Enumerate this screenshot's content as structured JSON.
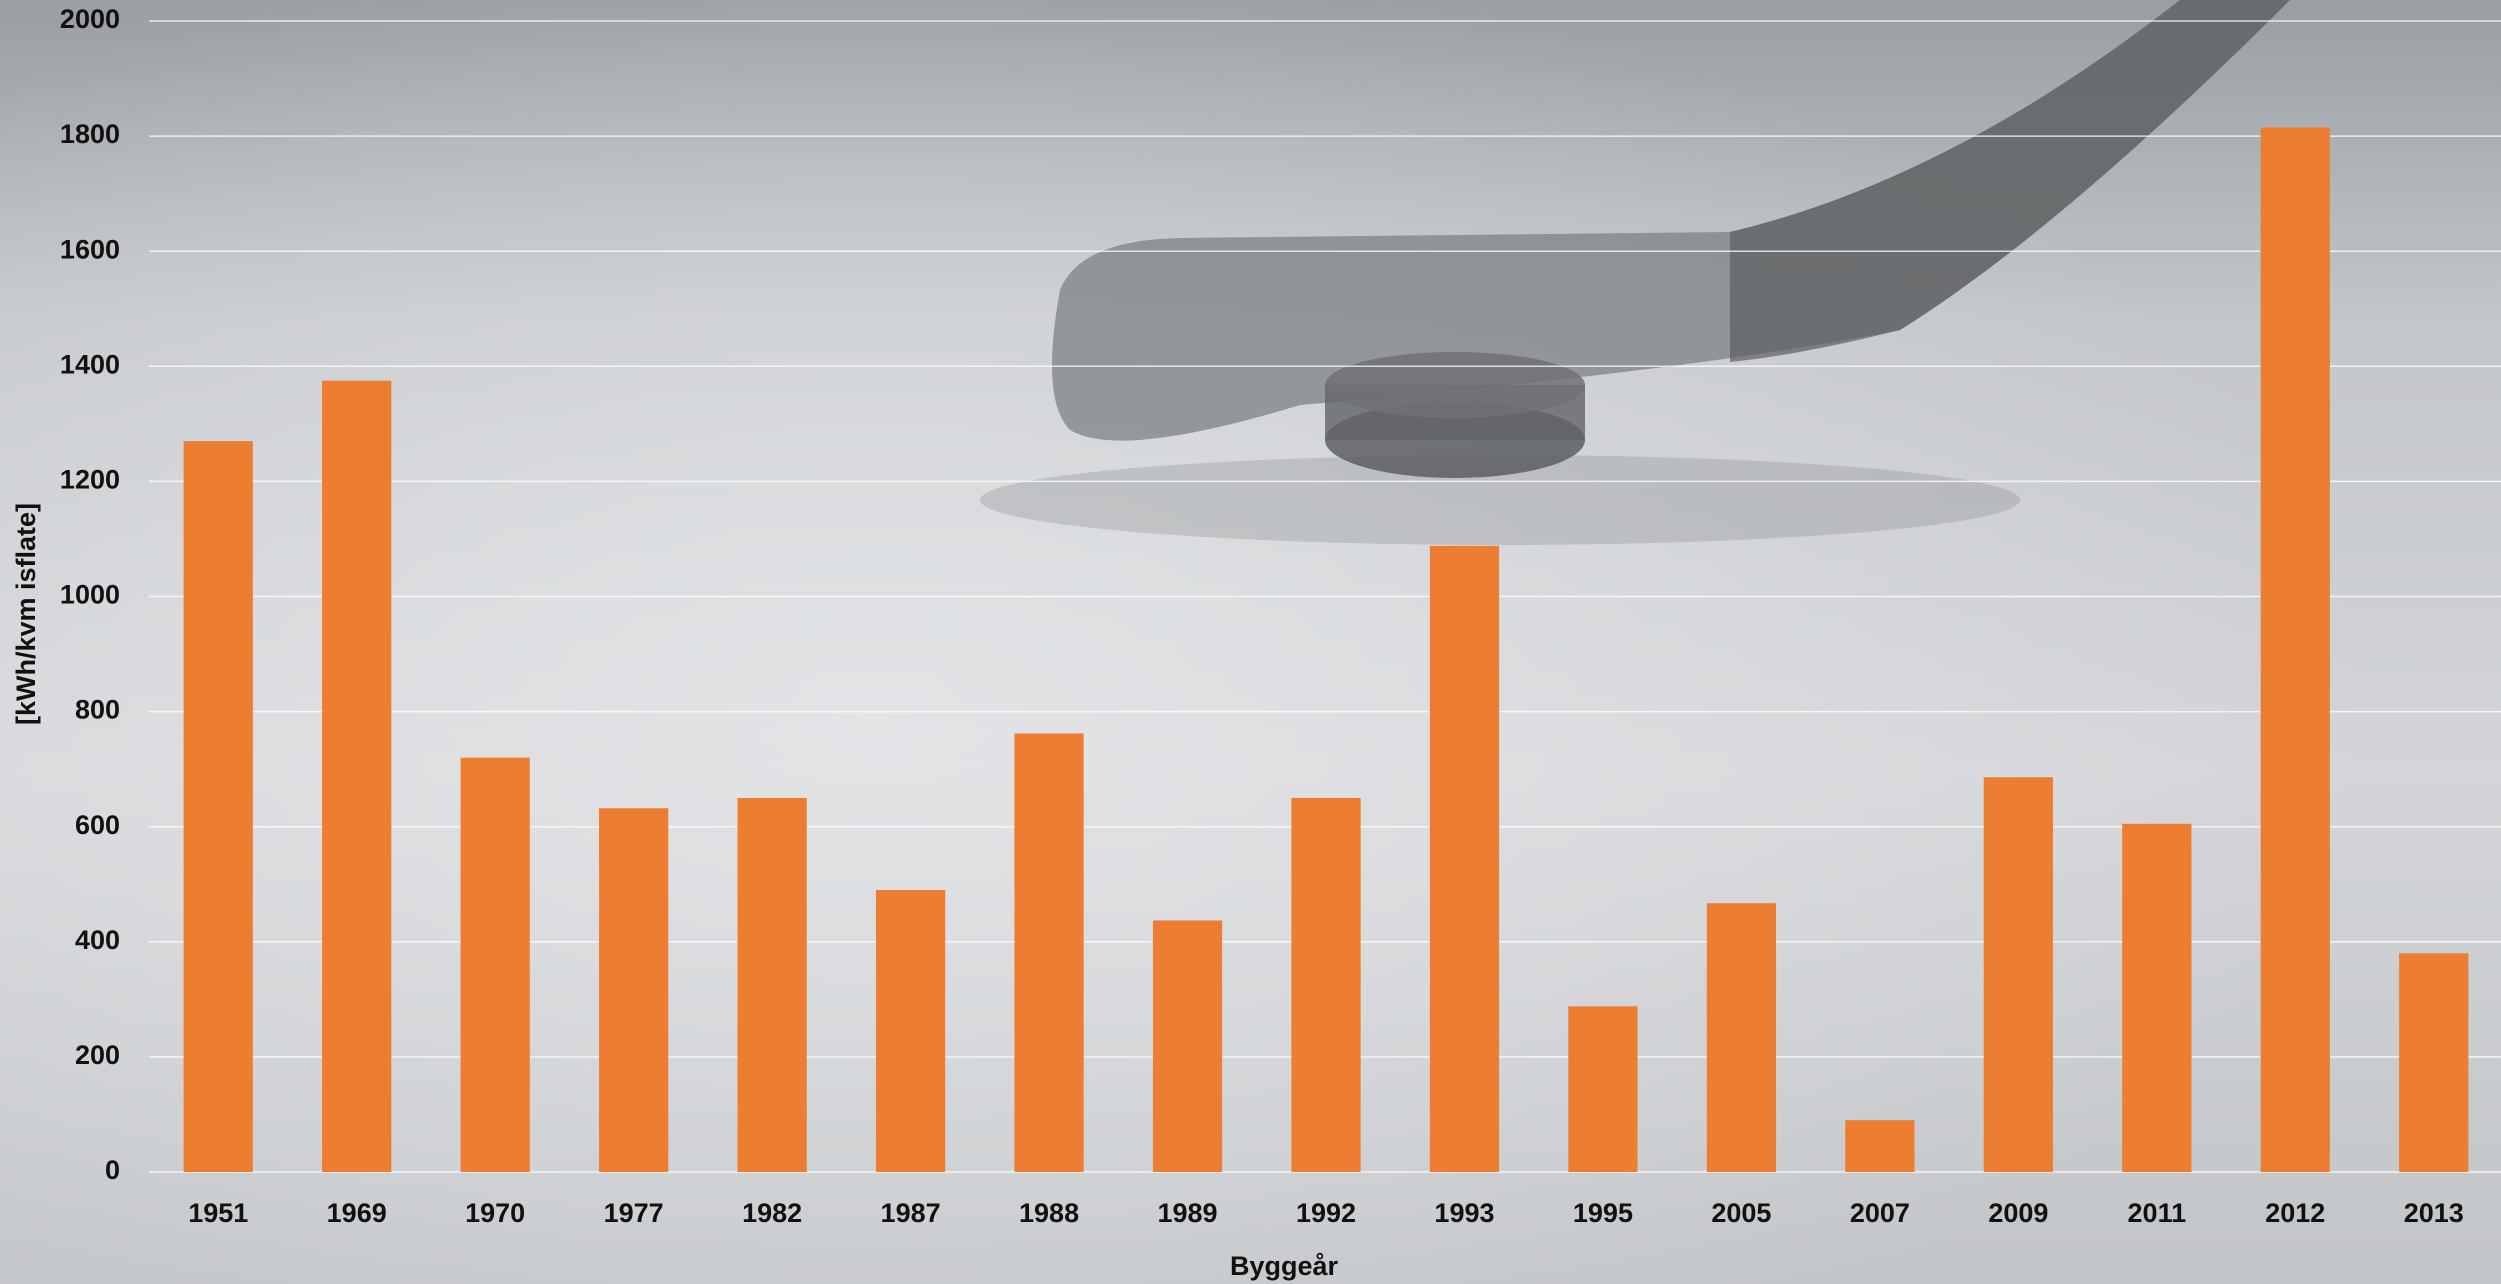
{
  "chart_data": {
    "type": "bar",
    "categories": [
      "1951",
      "1969",
      "1970",
      "1977",
      "1982",
      "1987",
      "1988",
      "1989",
      "1992",
      "1993",
      "1995",
      "2005",
      "2007",
      "2009",
      "2011",
      "2012",
      "2013"
    ],
    "values": [
      1270,
      1375,
      720,
      632,
      650,
      490,
      762,
      437,
      650,
      1088,
      288,
      467,
      90,
      686,
      605,
      1815,
      380
    ],
    "color": "#ed7d31",
    "xlabel": "Byggeår",
    "ylabel": "[kWh/kvm isflate]",
    "ylim": [
      0,
      2000
    ],
    "yticks": [
      0,
      200,
      400,
      600,
      800,
      1000,
      1200,
      1400,
      1600,
      1800,
      2000
    ],
    "grid": true
  }
}
